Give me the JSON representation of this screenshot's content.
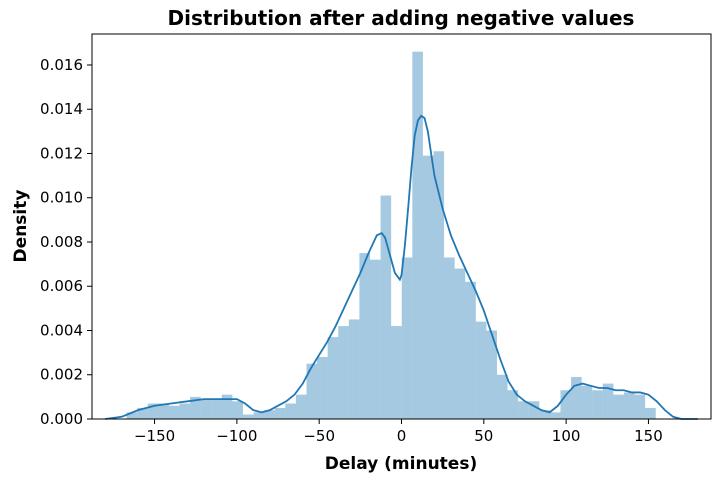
{
  "chart_data": {
    "type": "histogram",
    "title": "Distribution after adding negative values",
    "xlabel": "Delay (minutes)",
    "ylabel": "Density",
    "xlim": [
      -188,
      188
    ],
    "ylim": [
      0,
      0.0174
    ],
    "xticks": [
      -150,
      -100,
      -50,
      0,
      50,
      100,
      150
    ],
    "xtick_labels": [
      "−150",
      "−100",
      "−50",
      "0",
      "50",
      "100",
      "150"
    ],
    "yticks": [
      0,
      0.002,
      0.004,
      0.006,
      0.008,
      0.01,
      0.012,
      0.014,
      0.016
    ],
    "ytick_labels": [
      "0.000",
      "0.002",
      "0.004",
      "0.006",
      "0.008",
      "0.010",
      "0.012",
      "0.014",
      "0.016"
    ],
    "grid": false,
    "colors": {
      "bars": "#1f77b4",
      "bar_alpha": 0.4,
      "kde": "#1f77b4"
    },
    "bin_width": 6.43,
    "bins": [
      {
        "x0": -167,
        "value": 0.0003
      },
      {
        "x0": -160.57,
        "value": 0.0005
      },
      {
        "x0": -154.14,
        "value": 0.0007
      },
      {
        "x0": -147.71,
        "value": 0.0007
      },
      {
        "x0": -141.29,
        "value": 0.0006
      },
      {
        "x0": -134.86,
        "value": 0.0007
      },
      {
        "x0": -128.43,
        "value": 0.001
      },
      {
        "x0": -122,
        "value": 0.0009
      },
      {
        "x0": -115.57,
        "value": 0.0009
      },
      {
        "x0": -109.14,
        "value": 0.0011
      },
      {
        "x0": -102.71,
        "value": 0.0008
      },
      {
        "x0": -96.29,
        "value": 0.0002
      },
      {
        "x0": -89.86,
        "value": 0.0003
      },
      {
        "x0": -83.43,
        "value": 0.0004
      },
      {
        "x0": -77,
        "value": 0.0005
      },
      {
        "x0": -70.57,
        "value": 0.0007
      },
      {
        "x0": -64.14,
        "value": 0.0011
      },
      {
        "x0": -57.71,
        "value": 0.0025
      },
      {
        "x0": -51.29,
        "value": 0.0028
      },
      {
        "x0": -44.86,
        "value": 0.0037
      },
      {
        "x0": -38.43,
        "value": 0.0042
      },
      {
        "x0": -32,
        "value": 0.0045
      },
      {
        "x0": -25.57,
        "value": 0.0075
      },
      {
        "x0": -19.14,
        "value": 0.0072
      },
      {
        "x0": -12.71,
        "value": 0.0101
      },
      {
        "x0": -6.29,
        "value": 0.0042
      },
      {
        "x0": 0.14,
        "value": 0.0073
      },
      {
        "x0": 6.57,
        "value": 0.0166
      },
      {
        "x0": 13,
        "value": 0.0119
      },
      {
        "x0": 19.43,
        "value": 0.0121
      },
      {
        "x0": 25.86,
        "value": 0.0073
      },
      {
        "x0": 32.29,
        "value": 0.0068
      },
      {
        "x0": 38.71,
        "value": 0.0062
      },
      {
        "x0": 45.14,
        "value": 0.0044
      },
      {
        "x0": 51.57,
        "value": 0.004
      },
      {
        "x0": 58,
        "value": 0.002
      },
      {
        "x0": 64.43,
        "value": 0.0013
      },
      {
        "x0": 70.86,
        "value": 0.0008
      },
      {
        "x0": 77.29,
        "value": 0.0008
      },
      {
        "x0": 83.71,
        "value": 0.0004
      },
      {
        "x0": 90.14,
        "value": 0.0003
      },
      {
        "x0": 96.57,
        "value": 0.0013
      },
      {
        "x0": 103,
        "value": 0.0019
      },
      {
        "x0": 109.43,
        "value": 0.0015
      },
      {
        "x0": 115.86,
        "value": 0.0013
      },
      {
        "x0": 122.29,
        "value": 0.0016
      },
      {
        "x0": 128.71,
        "value": 0.0011
      },
      {
        "x0": 135.14,
        "value": 0.0012
      },
      {
        "x0": 141.57,
        "value": 0.0011
      },
      {
        "x0": 148,
        "value": 0.0005
      }
    ],
    "kde": {
      "x": [
        -180,
        -170,
        -160,
        -150,
        -140,
        -130,
        -120,
        -110,
        -100,
        -95,
        -90,
        -85,
        -80,
        -75,
        -70,
        -65,
        -60,
        -55,
        -50,
        -45,
        -40,
        -35,
        -30,
        -25,
        -20,
        -15,
        -12,
        -10,
        -7,
        -4,
        -1,
        0,
        2,
        4,
        6,
        8,
        10,
        12,
        14,
        16,
        18,
        20,
        25,
        30,
        35,
        40,
        45,
        50,
        55,
        60,
        65,
        70,
        75,
        80,
        85,
        90,
        95,
        100,
        105,
        110,
        115,
        120,
        125,
        130,
        135,
        140,
        145,
        150,
        155,
        160,
        165,
        170,
        175,
        180
      ],
      "y": [
        0.0,
        0.0001,
        0.0004,
        0.0006,
        0.0007,
        0.0008,
        0.0009,
        0.0009,
        0.0009,
        0.0007,
        0.0004,
        0.0003,
        0.0004,
        0.0006,
        0.0008,
        0.0011,
        0.0016,
        0.0023,
        0.0029,
        0.0035,
        0.0042,
        0.005,
        0.0058,
        0.0066,
        0.0075,
        0.0083,
        0.0084,
        0.0082,
        0.0074,
        0.0066,
        0.0063,
        0.0065,
        0.0078,
        0.0095,
        0.0113,
        0.0128,
        0.0135,
        0.0137,
        0.0136,
        0.013,
        0.012,
        0.011,
        0.0095,
        0.0083,
        0.0074,
        0.0066,
        0.0058,
        0.0049,
        0.0038,
        0.0027,
        0.0017,
        0.0011,
        0.0008,
        0.0006,
        0.0004,
        0.0003,
        0.0006,
        0.0011,
        0.0015,
        0.0016,
        0.0015,
        0.0014,
        0.0014,
        0.0013,
        0.0013,
        0.0012,
        0.0012,
        0.0011,
        0.0008,
        0.0004,
        0.0001,
        0.0,
        0.0,
        0.0
      ]
    }
  }
}
